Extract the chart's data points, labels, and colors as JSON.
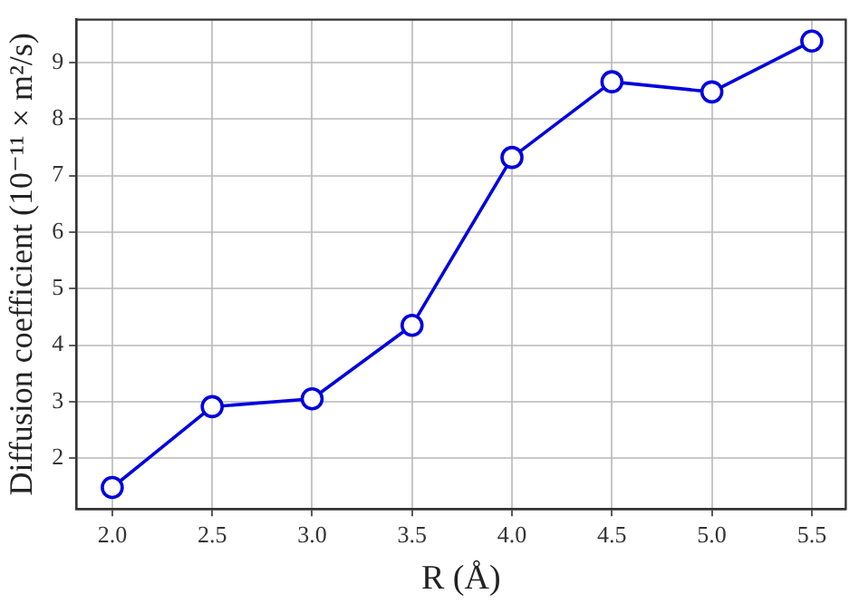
{
  "chart_data": {
    "type": "line",
    "xlabel": "R (Å)",
    "ylabel": "Diffusion coefficient (10⁻¹¹ × m²/s)",
    "x": [
      2.0,
      2.5,
      3.0,
      3.5,
      4.0,
      4.5,
      5.0,
      5.5
    ],
    "series": [
      {
        "color": "#0000dd",
        "values": [
          1.48,
          2.91,
          3.05,
          4.35,
          7.32,
          8.66,
          8.48,
          9.38
        ]
      }
    ],
    "xlim": [
      1.82,
      5.67
    ],
    "ylim": [
      1.1,
      9.76
    ],
    "xticks": [
      {
        "value": 2,
        "label": "2.0"
      },
      {
        "value": 2.5,
        "label": "2.5"
      },
      {
        "value": 3,
        "label": "3.0"
      },
      {
        "value": 3.5,
        "label": "3.5"
      },
      {
        "value": 4,
        "label": "4.0"
      },
      {
        "value": 4.5,
        "label": "4.5"
      },
      {
        "value": 5,
        "label": "5.0"
      },
      {
        "value": 5.5,
        "label": "5.5"
      }
    ],
    "yticks": [
      2,
      3,
      4,
      5,
      6,
      7,
      8,
      9
    ],
    "grid": true,
    "marker": "circle",
    "line_style": "solid"
  }
}
